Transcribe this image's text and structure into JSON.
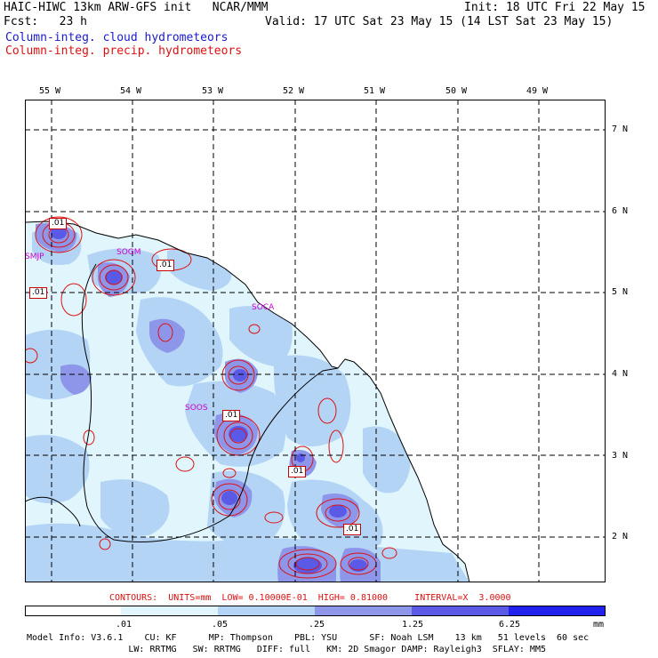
{
  "header": {
    "title": "HAIC-HIWC 13km ARW-GFS init   NCAR/MMM",
    "init": "Init: 18 UTC Fri 22 May 15",
    "fcst": "Fcst:   23 h",
    "valid": "Valid: 17 UTC Sat 23 May 15 (14 LST Sat 23 May 15)",
    "field1": "Column-integ. cloud hydrometeors",
    "field2": "Column-integ. precip. hydrometeors"
  },
  "lon_labels": [
    "55 W",
    "54 W",
    "53 W",
    "52 W",
    "51 W",
    "50 W",
    "49 W"
  ],
  "lat_labels": [
    "7 N",
    "6 N",
    "5 N",
    "4 N",
    "3 N",
    "2 N"
  ],
  "places": [
    "SMJP",
    "SOGM",
    "SOCA",
    "SOOS"
  ],
  "contour_labels": [
    ".01",
    ".01",
    ".01",
    ".01",
    ".01",
    ".01"
  ],
  "contour_info": "CONTOURS:  UNITS=mm  LOW= 0.10000E-01  HIGH= 0.81000     INTERVAL=X  3.0000",
  "colorbar": {
    "ticks": [
      ".01",
      ".05",
      ".25",
      "1.25",
      "6.25"
    ],
    "unit": "mm",
    "colors": [
      "#ffffff",
      "#e0f6fc",
      "#b4d4f6",
      "#8e96ea",
      "#5a5ae6",
      "#2222ee"
    ]
  },
  "model_info": {
    "line1": "Model Info: V3.6.1    CU: KF      MP: Thompson    PBL: YSU      SF: Noah LSM    13 km   51 levels  60 sec",
    "line2": "                   LW: RRTMG   SW: RRTMG   DIFF: full   KM: 2D Smagor DAMP: Rayleigh3  SFLAY: MM5"
  }
}
